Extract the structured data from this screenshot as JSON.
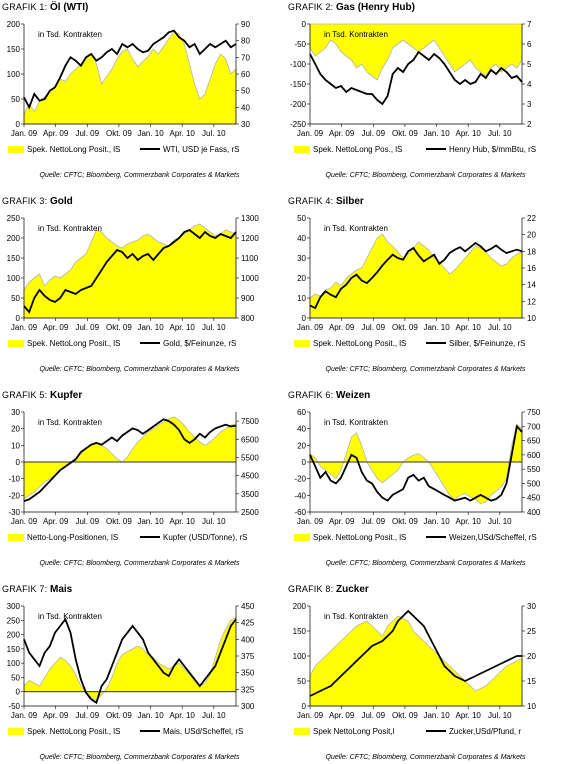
{
  "source": "Quelle: CFTC; Bloomberg, Commerzbank Corporates & Markets",
  "colors": {
    "area": "#ffff00",
    "area_edge": "#b4b4b4",
    "line": "#000000",
    "baseline": "#000000"
  },
  "chart_data": [
    {
      "type": "area+line",
      "label": "GRAFIK 1:",
      "title": "Öl (WTI)",
      "note": "in Tsd. Kontrakten",
      "left_axis": {
        "min": 0,
        "max": 200,
        "ticks": [
          0,
          50,
          100,
          150,
          200
        ]
      },
      "right_axis": {
        "min": 30,
        "max": 90,
        "ticks": [
          30,
          40,
          50,
          60,
          70,
          80,
          90
        ]
      },
      "x_labels": [
        "Jan. 09",
        "Apr. 09",
        "Jul. 09",
        "Okt. 09",
        "Jan. 10",
        "Apr. 10",
        "Jul. 10"
      ],
      "area_series": {
        "name": "Spek. NettoLong Posit., lS",
        "values": [
          20,
          40,
          25,
          45,
          55,
          65,
          75,
          90,
          85,
          100,
          110,
          120,
          130,
          140,
          120,
          80,
          95,
          110,
          130,
          145,
          150,
          130,
          115,
          125,
          135,
          150,
          140,
          155,
          170,
          185,
          180,
          160,
          120,
          80,
          50,
          60,
          90,
          120,
          140,
          130,
          100,
          110
        ]
      },
      "line_series": {
        "name": "WTI, USD je Fass, rS",
        "values": [
          46,
          40,
          48,
          44,
          45,
          50,
          52,
          58,
          65,
          70,
          68,
          65,
          70,
          72,
          68,
          70,
          73,
          75,
          72,
          78,
          76,
          78,
          75,
          73,
          74,
          78,
          80,
          82,
          85,
          86,
          82,
          80,
          76,
          78,
          72,
          75,
          78,
          76,
          78,
          80,
          76,
          78
        ]
      }
    },
    {
      "type": "area+line",
      "label": "GRAFIK 2:",
      "title": "Gas (Henry Hub)",
      "note": "in Tsd. Kontrakten",
      "left_axis": {
        "min": -250,
        "max": 0,
        "ticks": [
          0,
          -50,
          -100,
          -150,
          -200,
          -250
        ]
      },
      "right_axis": {
        "min": 2,
        "max": 7,
        "ticks": [
          2,
          3,
          4,
          5,
          6,
          7
        ]
      },
      "x_labels": [
        "Jan. 09",
        "Apr. 09",
        "Jul. 09",
        "Okt. 09",
        "Jan. 10",
        "Apr. 10",
        "Jul. 10"
      ],
      "area_series": {
        "name": "Spek. NettoLong Pos., lS",
        "values": [
          -60,
          -80,
          -70,
          -60,
          -40,
          -50,
          -70,
          -80,
          -90,
          -110,
          -100,
          -120,
          -130,
          -140,
          -110,
          -90,
          -60,
          -50,
          -40,
          -50,
          -60,
          -70,
          -60,
          -50,
          -40,
          -60,
          -80,
          -100,
          -120,
          -110,
          -100,
          -90,
          -110,
          -120,
          -130,
          -110,
          -100,
          -120,
          -110,
          -100,
          -110,
          -90
        ]
      },
      "line_series": {
        "name": "Henry Hub, $/mmBtu, rS",
        "values": [
          5.5,
          5,
          4.5,
          4.2,
          4.0,
          3.8,
          3.9,
          3.6,
          3.8,
          3.7,
          3.6,
          3.5,
          3.5,
          3.2,
          3.0,
          3.4,
          4.5,
          4.8,
          4.6,
          5.0,
          5.2,
          5.6,
          5.4,
          5.2,
          5.5,
          5.3,
          5.0,
          4.6,
          4.2,
          4.0,
          4.2,
          4.0,
          4.1,
          4.5,
          4.3,
          4.7,
          4.5,
          4.8,
          4.6,
          4.3,
          4.4,
          4.1
        ]
      }
    },
    {
      "type": "area+line",
      "label": "GRAFIK 3:",
      "title": "Gold",
      "note": "in Tsd. Kontrakten",
      "left_axis": {
        "min": 0,
        "max": 250,
        "ticks": [
          0,
          50,
          100,
          150,
          200,
          250
        ]
      },
      "right_axis": {
        "min": 800,
        "max": 1300,
        "ticks": [
          800,
          900,
          1000,
          1100,
          1200,
          1300
        ]
      },
      "x_labels": [
        "Jan. 09",
        "Apr. 09",
        "Jul. 09",
        "Okt. 09",
        "Jan. 10",
        "Apr. 10",
        "Jul. 10"
      ],
      "area_series": {
        "name": "Spek. NettoLong Posit., lS",
        "values": [
          70,
          90,
          100,
          110,
          80,
          95,
          105,
          100,
          110,
          120,
          140,
          150,
          160,
          190,
          220,
          215,
          200,
          190,
          180,
          175,
          185,
          190,
          195,
          205,
          210,
          200,
          190,
          185,
          180,
          195,
          200,
          210,
          220,
          230,
          235,
          225,
          215,
          205,
          210,
          220,
          215,
          210
        ]
      },
      "line_series": {
        "name": "Gold, $/Feinunze, rS",
        "values": [
          860,
          830,
          900,
          940,
          910,
          890,
          880,
          900,
          940,
          930,
          920,
          940,
          950,
          960,
          1000,
          1040,
          1080,
          1110,
          1140,
          1130,
          1100,
          1120,
          1090,
          1110,
          1120,
          1090,
          1120,
          1150,
          1160,
          1180,
          1200,
          1230,
          1240,
          1220,
          1200,
          1230,
          1210,
          1200,
          1220,
          1210,
          1200,
          1230
        ]
      }
    },
    {
      "type": "area+line",
      "label": "GRAFIK 4:",
      "title": "Silber",
      "note": "in Tsd. Kontrakten",
      "left_axis": {
        "min": 0,
        "max": 50,
        "ticks": [
          0,
          10,
          20,
          30,
          40,
          50
        ]
      },
      "right_axis": {
        "min": 10,
        "max": 22,
        "ticks": [
          10,
          12,
          14,
          16,
          18,
          20,
          22
        ]
      },
      "x_labels": [
        "Jan. 09",
        "Apr. 09",
        "Jul. 09",
        "Okt. 09",
        "Jan. 10",
        "Apr. 10",
        "Jul. 10"
      ],
      "area_series": {
        "name": "Spek. NettoLong Posit., lS",
        "values": [
          10,
          12,
          11,
          14,
          15,
          18,
          16,
          20,
          22,
          24,
          25,
          30,
          35,
          40,
          42,
          38,
          36,
          33,
          30,
          32,
          35,
          38,
          36,
          34,
          30,
          28,
          25,
          22,
          24,
          27,
          30,
          33,
          36,
          35,
          33,
          30,
          28,
          26,
          27,
          30,
          32,
          33
        ]
      },
      "line_series": {
        "name": "Silber, $/Feinunze, rS",
        "values": [
          11.5,
          11.2,
          12.5,
          13.2,
          12.8,
          12.5,
          13.5,
          14.0,
          14.8,
          15.2,
          14.5,
          14.2,
          14.8,
          15.5,
          16.3,
          17.0,
          17.6,
          17.2,
          17.0,
          18.0,
          18.4,
          17.5,
          16.8,
          17.2,
          17.6,
          16.5,
          17.0,
          17.8,
          18.2,
          18.5,
          18.0,
          18.5,
          19.0,
          18.6,
          18.0,
          18.3,
          18.7,
          18.2,
          17.8,
          18.0,
          18.2,
          18.0
        ]
      }
    },
    {
      "type": "area+line",
      "label": "GRAFIK 5:",
      "title": "Kupfer",
      "note": "in Tsd. Kontrakten",
      "left_axis": {
        "min": -30,
        "max": 30,
        "ticks": [
          30,
          20,
          10,
          0,
          -10,
          -20,
          -30
        ]
      },
      "right_axis": {
        "min": 2500,
        "max": 8000,
        "ticks": [
          2500,
          3500,
          4500,
          5500,
          6500,
          7500
        ]
      },
      "x_labels": [
        "Jan. 09",
        "Apr. 09",
        "Jul. 09",
        "Okt. 09",
        "Jan. 10",
        "Apr. 10",
        "Jul. 10"
      ],
      "area_series": {
        "name": "Netto-Long-Positionen, lS",
        "values": [
          -22,
          -20,
          -18,
          -15,
          -12,
          -10,
          -8,
          -5,
          -3,
          0,
          2,
          5,
          8,
          10,
          12,
          10,
          8,
          5,
          2,
          0,
          3,
          8,
          12,
          15,
          18,
          20,
          22,
          24,
          26,
          27,
          25,
          22,
          18,
          15,
          12,
          10,
          12,
          15,
          18,
          20,
          22,
          23
        ]
      },
      "line_series": {
        "name": "Kupfer (USD/Tonne), rS",
        "values": [
          3100,
          3200,
          3400,
          3600,
          3900,
          4200,
          4500,
          4800,
          5000,
          5200,
          5400,
          5800,
          6000,
          6200,
          6300,
          6200,
          6400,
          6600,
          6400,
          6700,
          6900,
          7100,
          7000,
          6800,
          7000,
          7200,
          7400,
          7600,
          7500,
          7300,
          7000,
          6500,
          6300,
          6500,
          6800,
          6600,
          6900,
          7100,
          7200,
          7300,
          7200,
          7250
        ]
      }
    },
    {
      "type": "area+line",
      "label": "GRAFIK 6:",
      "title": "Weizen",
      "note": "in Tsd. Kontrakten",
      "left_axis": {
        "min": -60,
        "max": 60,
        "ticks": [
          60,
          40,
          20,
          0,
          -20,
          -40,
          -60
        ]
      },
      "right_axis": {
        "min": 400,
        "max": 750,
        "ticks": [
          400,
          450,
          500,
          550,
          600,
          650,
          700,
          750
        ]
      },
      "x_labels": [
        "Jan. 09",
        "Apr. 09",
        "Jul. 09",
        "Okt. 09",
        "Jan. 10",
        "Apr. 10",
        "Jul. 10"
      ],
      "area_series": {
        "name": "Spek. NettoLong Posit., lS",
        "values": [
          10,
          5,
          -5,
          -10,
          -15,
          -20,
          -10,
          10,
          30,
          35,
          20,
          0,
          -10,
          -20,
          -25,
          -20,
          -15,
          -10,
          0,
          5,
          8,
          10,
          5,
          0,
          -10,
          -20,
          -30,
          -40,
          -45,
          -40,
          -38,
          -42,
          -45,
          -50,
          -48,
          -40,
          -35,
          -30,
          -20,
          20,
          45,
          40
        ]
      },
      "line_series": {
        "name": "Weizen,USd/Scheffel, rS",
        "values": [
          600,
          560,
          520,
          540,
          510,
          500,
          520,
          560,
          600,
          590,
          540,
          510,
          500,
          470,
          450,
          440,
          460,
          470,
          480,
          520,
          530,
          510,
          520,
          490,
          480,
          470,
          460,
          450,
          440,
          445,
          450,
          440,
          450,
          460,
          450,
          440,
          445,
          460,
          500,
          600,
          700,
          680
        ]
      }
    },
    {
      "type": "area+line",
      "label": "GRAFIK 7:",
      "title": "Mais",
      "note": "in Tsd. Kontrakten",
      "left_axis": {
        "min": -50,
        "max": 300,
        "ticks": [
          300,
          250,
          200,
          150,
          100,
          50,
          0,
          -50
        ]
      },
      "right_axis": {
        "min": 300,
        "max": 450,
        "ticks": [
          300,
          325,
          350,
          375,
          400,
          425,
          450
        ]
      },
      "x_labels": [
        "Jan. 09",
        "Apr. 09",
        "Jul. 09",
        "Okt. 09",
        "Jan. 10",
        "Apr. 10",
        "Jul. 10"
      ],
      "area_series": {
        "name": "Spek. NettoLong Posit., lS",
        "values": [
          20,
          40,
          30,
          20,
          50,
          80,
          100,
          120,
          110,
          90,
          60,
          20,
          0,
          -20,
          -30,
          -10,
          10,
          50,
          100,
          130,
          140,
          150,
          160,
          150,
          130,
          120,
          100,
          90,
          80,
          90,
          100,
          80,
          60,
          40,
          20,
          30,
          60,
          120,
          180,
          220,
          250,
          260
        ]
      },
      "line_series": {
        "name": "Mais, USd/Scheffel, rS",
        "values": [
          400,
          380,
          370,
          360,
          380,
          390,
          410,
          420,
          430,
          410,
          370,
          340,
          320,
          310,
          305,
          330,
          340,
          360,
          380,
          400,
          410,
          420,
          410,
          400,
          380,
          370,
          360,
          350,
          345,
          360,
          370,
          360,
          350,
          340,
          330,
          340,
          350,
          360,
          380,
          400,
          420,
          430
        ]
      }
    },
    {
      "type": "area+line",
      "label": "GRAFIK 8:",
      "title": "Zucker",
      "note": "in Tsd. Kontrakten",
      "left_axis": {
        "min": 0,
        "max": 200,
        "ticks": [
          0,
          50,
          100,
          150,
          200
        ]
      },
      "right_axis": {
        "min": 10,
        "max": 30,
        "ticks": [
          10,
          15,
          20,
          25,
          30
        ]
      },
      "x_labels": [
        "Jan. 09",
        "Apr. 09",
        "Jul. 09",
        "Okt. 09",
        "Jan. 10",
        "Apr. 10",
        "Jul. 10"
      ],
      "area_series": {
        "name": "Spek NettoLong Posit,l",
        "values": [
          60,
          80,
          90,
          100,
          110,
          120,
          130,
          140,
          150,
          160,
          165,
          170,
          160,
          150,
          140,
          160,
          170,
          180,
          175,
          170,
          150,
          140,
          130,
          120,
          110,
          100,
          90,
          80,
          70,
          60,
          50,
          40,
          30,
          35,
          40,
          50,
          60,
          70,
          80,
          85,
          90,
          95
        ]
      },
      "line_series": {
        "name": "Zucker,USd/Pfund, r",
        "values": [
          12,
          12.5,
          13,
          13.5,
          14,
          15,
          16,
          17,
          18,
          19,
          20,
          21,
          22,
          22.5,
          23,
          24,
          25,
          27,
          28,
          29,
          28,
          27,
          26,
          24,
          22,
          20,
          18,
          17,
          16,
          15.5,
          15,
          15.5,
          16,
          16.5,
          17,
          17.5,
          18,
          18.5,
          19,
          19.5,
          20,
          20
        ]
      }
    }
  ]
}
